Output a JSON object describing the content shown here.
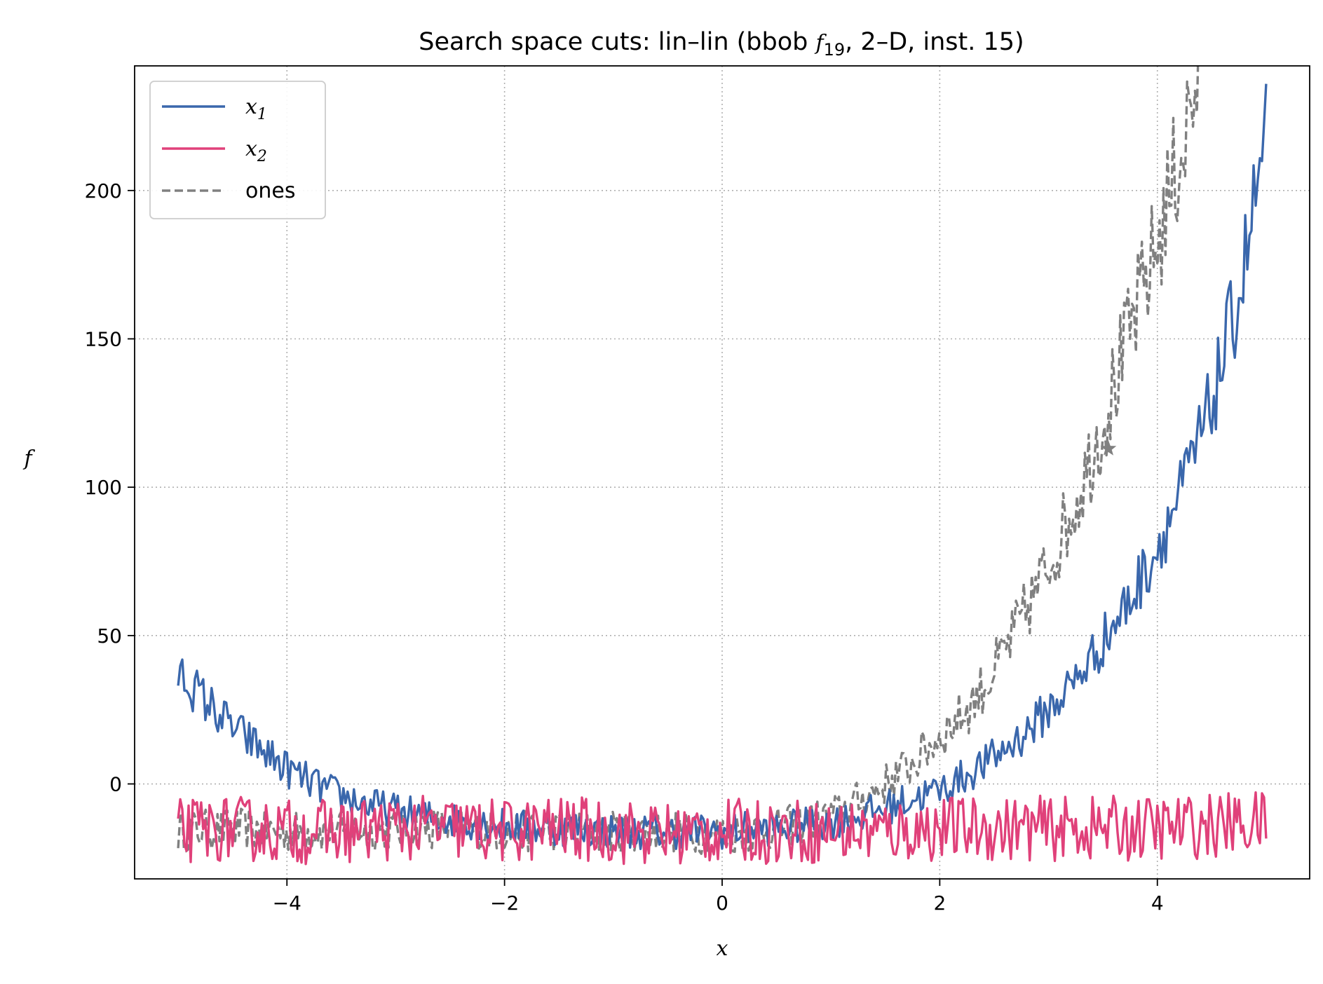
{
  "chart_data": {
    "type": "line",
    "title": {
      "prefix": "Search space cuts: lin–lin (bbob ",
      "func_letter": "f",
      "func_sub": "19",
      "suffix": ", 2–D, inst. 15)"
    },
    "xlabel": "x",
    "ylabel": "f",
    "xlim": [
      -5.4,
      5.4
    ],
    "ylim": [
      -32,
      242
    ],
    "xticks": [
      -4,
      -2,
      0,
      2,
      4
    ],
    "xtick_labels": [
      "−4",
      "−2",
      "0",
      "2",
      "4"
    ],
    "yticks": [
      0,
      50,
      100,
      150,
      200
    ],
    "ytick_labels": [
      "0",
      "50",
      "100",
      "150",
      "200"
    ],
    "grid": true,
    "legend_position": "upper-left",
    "series": [
      {
        "name": "x1",
        "label_base": "x",
        "label_sub": "1",
        "color": "#3a67ac",
        "dash": "solid",
        "x": [
          -5.0,
          -4.75,
          -4.5,
          -4.25,
          -4.0,
          -3.75,
          -3.5,
          -3.25,
          -3.0,
          -2.75,
          -2.5,
          -2.25,
          -2.0,
          -1.75,
          -1.5,
          -1.25,
          -1.0,
          -0.75,
          -0.5,
          -0.25,
          0.0,
          0.25,
          0.5,
          0.75,
          1.0,
          1.25,
          1.5,
          1.75,
          2.0,
          2.25,
          2.5,
          2.75,
          3.0,
          3.25,
          3.5,
          3.75,
          4.0,
          4.25,
          4.5,
          4.75,
          5.0
        ],
        "y": [
          38,
          28,
          19,
          12,
          5,
          0,
          -4,
          -7,
          -9,
          -11,
          -12,
          -13,
          -14,
          -15,
          -15,
          -15,
          -16,
          -16,
          -16,
          -16,
          -16,
          -15,
          -15,
          -14,
          -13,
          -11,
          -8,
          -5,
          -2,
          3,
          9,
          16,
          25,
          35,
          48,
          62,
          80,
          101,
          128,
          165,
          218
        ],
        "noise": 6
      },
      {
        "name": "x2",
        "label_base": "x",
        "label_sub": "2",
        "color": "#e0417a",
        "dash": "solid",
        "x": [
          -5.0,
          -4.5,
          -4.0,
          -3.5,
          -3.0,
          -2.5,
          -2.0,
          -1.5,
          -1.0,
          -0.5,
          0.0,
          0.5,
          1.0,
          1.5,
          2.0,
          2.5,
          3.0,
          3.5,
          4.0,
          4.5,
          5.0
        ],
        "y": [
          -16,
          -15,
          -16,
          -16,
          -15,
          -15,
          -16,
          -15,
          -16,
          -17,
          -16,
          -16,
          -16,
          -16,
          -15,
          -15,
          -15,
          -15,
          -15,
          -14,
          -13
        ],
        "noise": 11
      },
      {
        "name": "ones",
        "label_text": "ones",
        "color": "#808080",
        "dash": "dashed",
        "x": [
          -5.0,
          -4.5,
          -4.0,
          -3.5,
          -3.0,
          -2.5,
          -2.0,
          -1.5,
          -1.0,
          -0.5,
          0.0,
          0.5,
          1.0,
          1.25,
          1.5,
          1.75,
          2.0,
          2.25,
          2.5,
          2.75,
          3.0,
          3.25,
          3.5,
          3.75,
          4.0,
          4.25,
          4.4
        ],
        "y": [
          -16,
          -15,
          -16,
          -16,
          -15,
          -15,
          -16,
          -16,
          -16,
          -16,
          -17,
          -15,
          -11,
          -6,
          0,
          7,
          16,
          25,
          38,
          55,
          74,
          95,
          122,
          152,
          182,
          218,
          242
        ],
        "noise": 7
      }
    ],
    "markers": [
      {
        "symbol": "star",
        "x": 3.55,
        "y": 113,
        "color": "#808080"
      }
    ]
  }
}
